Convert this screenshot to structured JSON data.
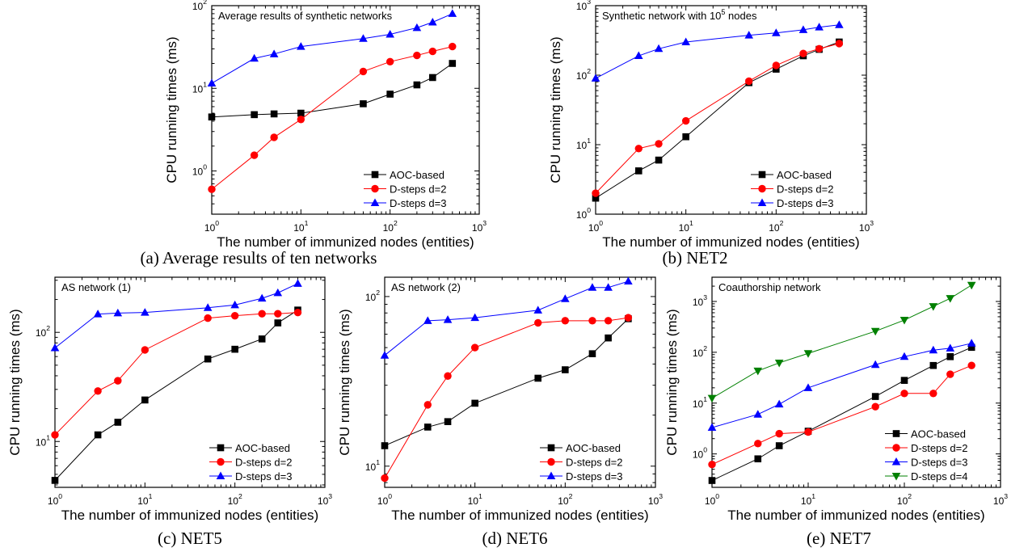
{
  "chart_data": [
    {
      "type": "line",
      "title": "Average results of synthetic networks",
      "caption": "(a) Average results of ten networks",
      "xlabel": "The number of immunized nodes (entities)",
      "ylabel": "CPU running times (ms)",
      "xscale": "log",
      "yscale": "log",
      "xlim": [
        1,
        1000
      ],
      "ylim": [
        0.3,
        100
      ],
      "xticks": [
        "10^0",
        "10^1",
        "10^2",
        "10^3"
      ],
      "yticks": [
        "10^0",
        "10^1",
        "10^2"
      ],
      "legend": "bottom-right",
      "x": [
        1,
        3,
        5,
        10,
        50,
        100,
        200,
        300,
        500
      ],
      "series": [
        {
          "name": "AOC-based",
          "color": "#000000",
          "marker": "square",
          "values": [
            4.5,
            4.8,
            4.9,
            5.0,
            6.5,
            8.5,
            11,
            13.5,
            20
          ]
        },
        {
          "name": "D-steps d=2",
          "color": "#ff0000",
          "marker": "circle",
          "values": [
            0.6,
            1.55,
            2.55,
            4.2,
            16,
            21,
            25,
            28,
            32
          ]
        },
        {
          "name": "D-steps d=3",
          "color": "#0000ff",
          "marker": "triangle-up",
          "values": [
            11.5,
            23,
            26,
            32,
            40,
            45,
            54,
            63,
            80
          ]
        }
      ]
    },
    {
      "type": "line",
      "title": "Synthetic network with 10^5 nodes",
      "caption": "(b) NET2",
      "xlabel": "The number of immunized nodes (entities)",
      "ylabel": "CPU running times (ms)",
      "xscale": "log",
      "yscale": "log",
      "xlim": [
        1,
        1000
      ],
      "ylim": [
        1,
        1000
      ],
      "xticks": [
        "10^0",
        "10^1",
        "10^2",
        "10^3"
      ],
      "yticks": [
        "10^0",
        "10^1",
        "10^2",
        "10^3"
      ],
      "legend": "bottom-right",
      "x": [
        1,
        3,
        5,
        10,
        50,
        100,
        200,
        300,
        500
      ],
      "series": [
        {
          "name": "AOC-based",
          "color": "#000000",
          "marker": "square",
          "values": [
            1.7,
            4.2,
            6,
            13,
            78,
            122,
            190,
            235,
            300
          ]
        },
        {
          "name": "D-steps d=2",
          "color": "#ff0000",
          "marker": "circle",
          "values": [
            2.0,
            8.8,
            10.3,
            22,
            82,
            138,
            205,
            240,
            285
          ]
        },
        {
          "name": "D-steps d=3",
          "color": "#0000ff",
          "marker": "triangle-up",
          "values": [
            90,
            190,
            240,
            300,
            375,
            405,
            450,
            490,
            530
          ]
        }
      ]
    },
    {
      "type": "line",
      "title": "AS network (1)",
      "caption": "(c) NET5",
      "xlabel": "The number of immunized nodes (entities)",
      "ylabel": "CPU running times (ms)",
      "xscale": "log",
      "yscale": "log",
      "xlim": [
        1,
        1000
      ],
      "ylim": [
        3.8,
        320
      ],
      "xticks": [
        "10^0",
        "10^1",
        "10^2",
        "10^3"
      ],
      "yticks": [
        "10^1",
        "10^2"
      ],
      "legend": "bottom-right",
      "x": [
        1,
        3,
        5,
        10,
        50,
        100,
        200,
        300,
        500
      ],
      "series": [
        {
          "name": "AOC-based",
          "color": "#000000",
          "marker": "square",
          "values": [
            4.4,
            11.5,
            15,
            24,
            57,
            70,
            87,
            122,
            160
          ]
        },
        {
          "name": "D-steps d=2",
          "color": "#ff0000",
          "marker": "circle",
          "values": [
            11.5,
            29,
            36,
            69,
            135,
            142,
            148,
            148,
            152
          ]
        },
        {
          "name": "D-steps d=3",
          "color": "#0000ff",
          "marker": "triangle-up",
          "values": [
            72,
            147,
            150,
            152,
            168,
            178,
            205,
            230,
            280
          ]
        }
      ]
    },
    {
      "type": "line",
      "title": "AS network (2)",
      "caption": "(d) NET6",
      "xlabel": "The number of immunized nodes (entities)",
      "ylabel": "CPU running times (ms)",
      "xscale": "log",
      "yscale": "log",
      "xlim": [
        1,
        1000
      ],
      "ylim": [
        7.5,
        130
      ],
      "xticks": [
        "10^0",
        "10^1",
        "10^2",
        "10^3"
      ],
      "yticks": [
        "10^1",
        "10^2"
      ],
      "legend": "bottom-right",
      "x": [
        1,
        3,
        5,
        10,
        50,
        100,
        200,
        300,
        500
      ],
      "series": [
        {
          "name": "AOC-based",
          "color": "#000000",
          "marker": "square",
          "values": [
            13.2,
            17,
            18.3,
            23.5,
            33,
            37,
            46,
            57,
            74
          ]
        },
        {
          "name": "D-steps d=2",
          "color": "#ff0000",
          "marker": "circle",
          "values": [
            8.5,
            23,
            34,
            50,
            70,
            72,
            72,
            72,
            75
          ]
        },
        {
          "name": "D-steps d=3",
          "color": "#0000ff",
          "marker": "triangle-up",
          "values": [
            45,
            72,
            73,
            75,
            83,
            97,
            113,
            113,
            123
          ]
        }
      ]
    },
    {
      "type": "line",
      "title": "Coauthorship network",
      "caption": "(e) NET7",
      "xlabel": "The number of immunized nodes (entities)",
      "ylabel": "CPU running times (ms)",
      "xscale": "log",
      "yscale": "log",
      "xlim": [
        1,
        1000
      ],
      "ylim": [
        0.22,
        3000
      ],
      "xticks": [
        "10^0",
        "10^1",
        "10^2",
        "10^3"
      ],
      "yticks": [
        "10^0",
        "10^1",
        "10^2",
        "10^3"
      ],
      "legend": "bottom-right",
      "x": [
        1,
        3,
        5,
        10,
        50,
        100,
        200,
        300,
        500
      ],
      "series": [
        {
          "name": "AOC-based",
          "color": "#000000",
          "marker": "square",
          "values": [
            0.3,
            0.8,
            1.45,
            2.8,
            13.5,
            28,
            55,
            82,
            125
          ]
        },
        {
          "name": "D-steps d=2",
          "color": "#ff0000",
          "marker": "circle",
          "values": [
            0.62,
            1.6,
            2.5,
            2.7,
            8.5,
            15.5,
            15.5,
            37,
            55
          ]
        },
        {
          "name": "D-steps d=3",
          "color": "#0000ff",
          "marker": "triangle-up",
          "values": [
            3.3,
            6,
            9.5,
            20,
            57,
            82,
            110,
            120,
            150
          ]
        },
        {
          "name": "D-steps d=4",
          "color": "#008000",
          "marker": "triangle-down",
          "values": [
            12.5,
            43,
            62,
            95,
            260,
            430,
            800,
            1150,
            2100
          ]
        }
      ]
    }
  ]
}
